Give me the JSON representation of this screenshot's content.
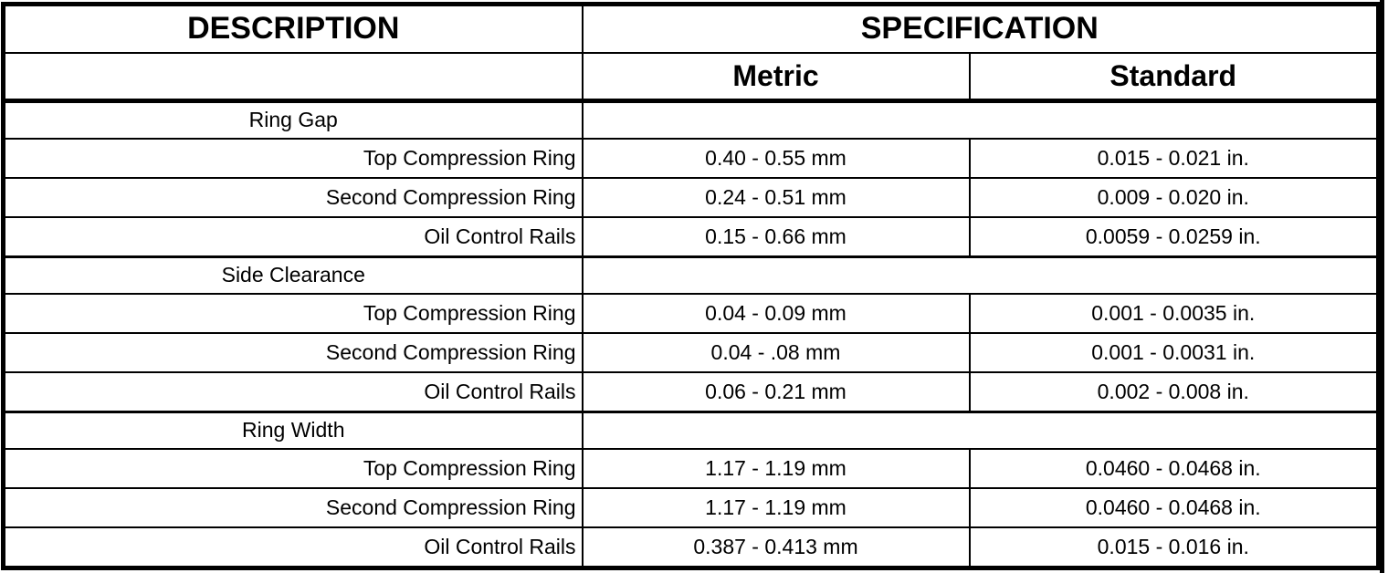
{
  "table": {
    "header": {
      "description": "DESCRIPTION",
      "specification": "SPECIFICATION",
      "metric": "Metric",
      "standard": "Standard"
    },
    "sections": [
      {
        "title": "Ring Gap",
        "rows": [
          {
            "label": "Top Compression Ring",
            "metric": "0.40 - 0.55 mm",
            "standard": "0.015 - 0.021 in."
          },
          {
            "label": "Second Compression Ring",
            "metric": "0.24 - 0.51 mm",
            "standard": "0.009 - 0.020 in."
          },
          {
            "label": "Oil Control Rails",
            "metric": "0.15 - 0.66 mm",
            "standard": "0.0059 - 0.0259 in."
          }
        ]
      },
      {
        "title": "Side Clearance",
        "rows": [
          {
            "label": "Top Compression Ring",
            "metric": "0.04 - 0.09 mm",
            "standard": "0.001 - 0.0035 in."
          },
          {
            "label": "Second Compression Ring",
            "metric": "0.04 - .08 mm",
            "standard": "0.001 - 0.0031 in."
          },
          {
            "label": "Oil Control Rails",
            "metric": "0.06 - 0.21 mm",
            "standard": "0.002 - 0.008 in."
          }
        ]
      },
      {
        "title": "Ring Width",
        "rows": [
          {
            "label": "Top Compression Ring",
            "metric": "1.17 - 1.19 mm",
            "standard": "0.0460 - 0.0468 in."
          },
          {
            "label": "Second Compression Ring",
            "metric": "1.17 - 1.19 mm",
            "standard": "0.0460 - 0.0468 in."
          },
          {
            "label": "Oil Control Rails",
            "metric": "0.387 - 0.413 mm",
            "standard": "0.015 - 0.016 in."
          }
        ]
      }
    ],
    "colors": {
      "border": "#000000",
      "background": "#ffffff",
      "text": "#000000"
    }
  }
}
